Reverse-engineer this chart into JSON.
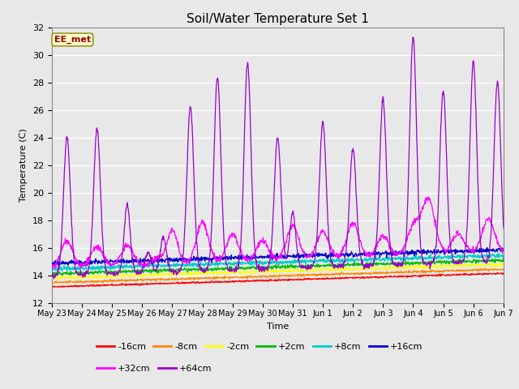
{
  "title": "Soil/Water Temperature Set 1",
  "xlabel": "Time",
  "ylabel": "Temperature (C)",
  "ylim": [
    12,
    32
  ],
  "yticks": [
    12,
    14,
    16,
    18,
    20,
    22,
    24,
    26,
    28,
    30,
    32
  ],
  "fig_bg_color": "#e8e8e8",
  "plot_bg_color": "#e8e8e8",
  "watermark_text": "EE_met",
  "watermark_bg": "#ffffcc",
  "watermark_border": "#888800",
  "watermark_text_color": "#990000",
  "series_colors": {
    "-16cm": "#ff0000",
    "-8cm": "#ff8800",
    "-2cm": "#ffff00",
    "+2cm": "#00bb00",
    "+8cm": "#00cccc",
    "+16cm": "#0000cc",
    "+32cm": "#ff00ff",
    "+64cm": "#9900cc"
  },
  "tick_labels": [
    "May 23",
    "May 24",
    "May 25",
    "May 26",
    "May 27",
    "May 28",
    "May 29",
    "May 30",
    "May 31",
    "Jun 1",
    "Jun 2",
    "Jun 3",
    "Jun 4",
    "Jun 5",
    "Jun 6",
    "Jun 7"
  ],
  "legend_row1": [
    "-16cm",
    "-8cm",
    "-2cm",
    "+2cm",
    "+8cm",
    "+16cm"
  ],
  "legend_row2": [
    "+32cm",
    "+64cm"
  ]
}
